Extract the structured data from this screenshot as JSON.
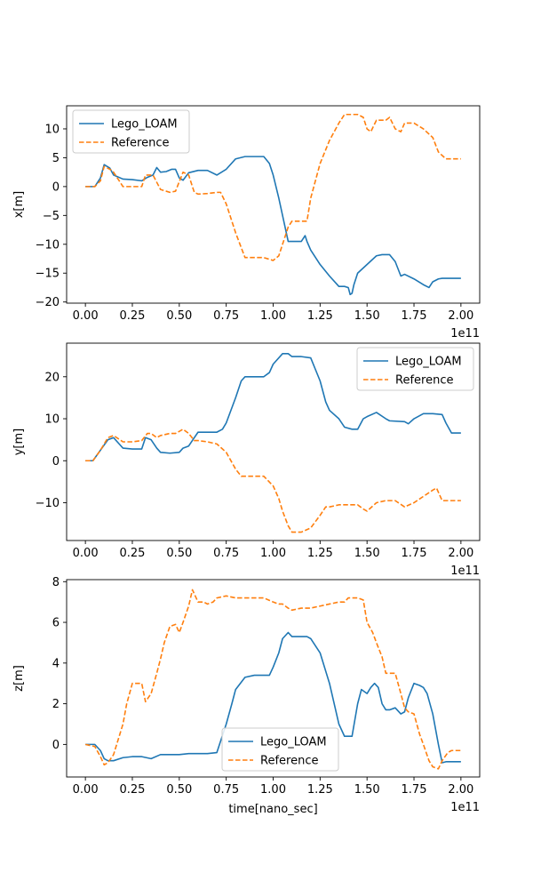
{
  "colors": {
    "lego": "#1f77b4",
    "reference": "#ff7f0e"
  },
  "chart_data": [
    {
      "type": "line",
      "title": "",
      "xlabel": "",
      "ylabel": "x[m]",
      "offset_text": "1e11",
      "xlim": [
        -0.1,
        2.1
      ],
      "ylim": [
        -20.2,
        14.0
      ],
      "xticks": [
        0.0,
        0.25,
        0.5,
        0.75,
        1.0,
        1.25,
        1.5,
        1.75,
        2.0
      ],
      "xtick_labels": [
        "0.00",
        "0.25",
        "0.50",
        "0.75",
        "1.00",
        "1.25",
        "1.50",
        "1.75",
        "2.00"
      ],
      "yticks": [
        -20,
        -15,
        -10,
        -5,
        0,
        5,
        10
      ],
      "ytick_labels": [
        "−20",
        "−15",
        "−10",
        "−5",
        "0",
        "5",
        "10"
      ],
      "legend": "upper-left",
      "grid": false,
      "series": [
        {
          "name": "Lego_LOAM",
          "style": "solid",
          "x": [
            0,
            0.05,
            0.08,
            0.1,
            0.13,
            0.15,
            0.2,
            0.25,
            0.3,
            0.33,
            0.36,
            0.38,
            0.4,
            0.43,
            0.46,
            0.48,
            0.5,
            0.52,
            0.55,
            0.6,
            0.65,
            0.7,
            0.75,
            0.8,
            0.85,
            0.9,
            0.95,
            0.98,
            1.0,
            1.03,
            1.06,
            1.08,
            1.1,
            1.15,
            1.17,
            1.18,
            1.2,
            1.25,
            1.3,
            1.35,
            1.38,
            1.4,
            1.41,
            1.42,
            1.43,
            1.45,
            1.5,
            1.55,
            1.58,
            1.62,
            1.65,
            1.68,
            1.7,
            1.75,
            1.8,
            1.83,
            1.85,
            1.88,
            1.9,
            2.0
          ],
          "y": [
            0,
            0,
            1.5,
            3.8,
            3.2,
            2.0,
            1.3,
            1.2,
            1.0,
            1.6,
            2.0,
            3.3,
            2.5,
            2.6,
            3.0,
            3.0,
            1.5,
            1.1,
            2.4,
            2.8,
            2.8,
            2.0,
            3.0,
            4.8,
            5.2,
            5.2,
            5.2,
            4.0,
            2.0,
            -2.0,
            -6.5,
            -9.5,
            -9.5,
            -9.5,
            -8.5,
            -9.5,
            -11.0,
            -13.5,
            -15.5,
            -17.3,
            -17.3,
            -17.5,
            -18.7,
            -18.5,
            -17.0,
            -15.0,
            -13.5,
            -12.0,
            -11.8,
            -11.8,
            -13.0,
            -15.5,
            -15.2,
            -16.0,
            -17.0,
            -17.5,
            -16.5,
            -16.0,
            -15.9,
            -15.9
          ]
        },
        {
          "name": "Reference",
          "style": "dashed",
          "x": [
            0,
            0.05,
            0.08,
            0.1,
            0.13,
            0.15,
            0.2,
            0.25,
            0.3,
            0.32,
            0.36,
            0.4,
            0.45,
            0.48,
            0.52,
            0.55,
            0.58,
            0.6,
            0.65,
            0.7,
            0.72,
            0.75,
            0.8,
            0.85,
            0.9,
            0.95,
            1.0,
            1.03,
            1.05,
            1.08,
            1.1,
            1.15,
            1.18,
            1.2,
            1.25,
            1.3,
            1.35,
            1.38,
            1.4,
            1.45,
            1.48,
            1.5,
            1.52,
            1.55,
            1.6,
            1.62,
            1.65,
            1.68,
            1.7,
            1.75,
            1.8,
            1.85,
            1.88,
            1.92,
            1.95,
            2.0
          ],
          "y": [
            0,
            0,
            1.0,
            3.5,
            3.0,
            2.5,
            0,
            0,
            0,
            2.0,
            2.0,
            -0.5,
            -1.0,
            -0.8,
            2.5,
            2.0,
            -1.0,
            -1.3,
            -1.2,
            -1.0,
            -1.0,
            -3.0,
            -8.0,
            -12.3,
            -12.3,
            -12.3,
            -12.8,
            -12.0,
            -10.0,
            -7.0,
            -6.0,
            -6.0,
            -6.0,
            -2.0,
            4.0,
            8.0,
            11.0,
            12.5,
            12.5,
            12.5,
            12.0,
            10.0,
            9.5,
            11.5,
            11.5,
            12.0,
            10.0,
            9.5,
            11.0,
            11.0,
            10.0,
            8.5,
            6.0,
            4.8,
            4.8,
            4.8
          ]
        }
      ]
    },
    {
      "type": "line",
      "title": "",
      "xlabel": "",
      "ylabel": "y[m]",
      "offset_text": "1e11",
      "xlim": [
        -0.1,
        2.1
      ],
      "ylim": [
        -19.0,
        28.0
      ],
      "xticks": [
        0.0,
        0.25,
        0.5,
        0.75,
        1.0,
        1.25,
        1.5,
        1.75,
        2.0
      ],
      "xtick_labels": [
        "0.00",
        "0.25",
        "0.50",
        "0.75",
        "1.00",
        "1.25",
        "1.50",
        "1.75",
        "2.00"
      ],
      "yticks": [
        -10,
        0,
        10,
        20
      ],
      "ytick_labels": [
        "−10",
        "0",
        "10",
        "20"
      ],
      "legend": "upper-right",
      "grid": false,
      "series": [
        {
          "name": "Lego_LOAM",
          "style": "solid",
          "x": [
            0,
            0.04,
            0.08,
            0.12,
            0.15,
            0.18,
            0.2,
            0.25,
            0.3,
            0.32,
            0.35,
            0.38,
            0.4,
            0.45,
            0.5,
            0.52,
            0.55,
            0.58,
            0.6,
            0.7,
            0.73,
            0.75,
            0.8,
            0.83,
            0.85,
            0.9,
            0.95,
            0.98,
            1.0,
            1.05,
            1.08,
            1.1,
            1.15,
            1.2,
            1.25,
            1.28,
            1.3,
            1.35,
            1.38,
            1.42,
            1.45,
            1.48,
            1.5,
            1.55,
            1.6,
            1.62,
            1.7,
            1.72,
            1.75,
            1.8,
            1.85,
            1.9,
            1.92,
            1.95,
            2.0
          ],
          "y": [
            0,
            0,
            2.5,
            5.0,
            5.5,
            4.0,
            3.0,
            2.8,
            2.8,
            5.5,
            5.0,
            3.0,
            2.0,
            1.8,
            2.0,
            3.0,
            3.5,
            5.5,
            6.8,
            6.8,
            7.5,
            9.0,
            15.0,
            19.0,
            20.0,
            20.0,
            20.0,
            21.0,
            23.0,
            25.5,
            25.5,
            24.8,
            24.8,
            24.5,
            19.0,
            14.0,
            12.0,
            10.0,
            8.0,
            7.5,
            7.5,
            10.0,
            10.5,
            11.5,
            10.0,
            9.5,
            9.3,
            8.8,
            10.0,
            11.2,
            11.2,
            11.0,
            9.0,
            6.6,
            6.6
          ]
        },
        {
          "name": "Reference",
          "style": "dashed",
          "x": [
            0,
            0.04,
            0.08,
            0.12,
            0.15,
            0.2,
            0.25,
            0.3,
            0.33,
            0.35,
            0.38,
            0.4,
            0.45,
            0.48,
            0.52,
            0.55,
            0.58,
            0.6,
            0.65,
            0.7,
            0.75,
            0.8,
            0.83,
            0.85,
            0.9,
            0.95,
            1.0,
            1.03,
            1.05,
            1.08,
            1.1,
            1.15,
            1.2,
            1.25,
            1.28,
            1.3,
            1.35,
            1.4,
            1.45,
            1.48,
            1.5,
            1.55,
            1.6,
            1.65,
            1.7,
            1.75,
            1.8,
            1.85,
            1.87,
            1.9,
            1.95,
            2.0
          ],
          "y": [
            0,
            0,
            2.5,
            5.5,
            6.0,
            4.5,
            4.5,
            4.8,
            6.5,
            6.5,
            5.5,
            6.0,
            6.5,
            6.5,
            7.5,
            6.5,
            4.8,
            4.8,
            4.5,
            4.0,
            2.0,
            -2.0,
            -3.7,
            -3.7,
            -3.7,
            -3.7,
            -6.0,
            -9.0,
            -12.0,
            -15.5,
            -17.0,
            -17.0,
            -16.0,
            -13.0,
            -11.0,
            -11.0,
            -10.5,
            -10.5,
            -10.5,
            -11.5,
            -12.0,
            -10.0,
            -9.5,
            -9.5,
            -11.0,
            -10.0,
            -8.5,
            -7.0,
            -6.5,
            -9.5,
            -9.5,
            -9.5
          ]
        }
      ]
    },
    {
      "type": "line",
      "title": "",
      "xlabel": "time[nano_sec]",
      "ylabel": "z[m]",
      "offset_text": "1e11",
      "xlim": [
        -0.1,
        2.1
      ],
      "ylim": [
        -1.6,
        8.1
      ],
      "xticks": [
        0.0,
        0.25,
        0.5,
        0.75,
        1.0,
        1.25,
        1.5,
        1.75,
        2.0
      ],
      "xtick_labels": [
        "0.00",
        "0.25",
        "0.50",
        "0.75",
        "1.00",
        "1.25",
        "1.50",
        "1.75",
        "2.00"
      ],
      "yticks": [
        0,
        2,
        4,
        6,
        8
      ],
      "ytick_labels": [
        "0",
        "2",
        "4",
        "6",
        "8"
      ],
      "legend": "lower-center",
      "grid": false,
      "series": [
        {
          "name": "Lego_LOAM",
          "style": "solid",
          "x": [
            0,
            0.05,
            0.08,
            0.1,
            0.12,
            0.15,
            0.2,
            0.25,
            0.3,
            0.35,
            0.4,
            0.45,
            0.5,
            0.55,
            0.6,
            0.65,
            0.7,
            0.75,
            0.78,
            0.8,
            0.85,
            0.9,
            0.95,
            0.98,
            1.0,
            1.03,
            1.05,
            1.08,
            1.1,
            1.15,
            1.18,
            1.2,
            1.25,
            1.3,
            1.35,
            1.38,
            1.4,
            1.42,
            1.45,
            1.47,
            1.5,
            1.52,
            1.54,
            1.56,
            1.58,
            1.6,
            1.62,
            1.65,
            1.68,
            1.7,
            1.72,
            1.75,
            1.78,
            1.8,
            1.82,
            1.85,
            1.88,
            1.9,
            1.92,
            1.95,
            2.0
          ],
          "y": [
            0,
            0,
            -0.3,
            -0.7,
            -0.8,
            -0.8,
            -0.65,
            -0.6,
            -0.6,
            -0.7,
            -0.5,
            -0.5,
            -0.5,
            -0.45,
            -0.45,
            -0.45,
            -0.4,
            1.0,
            2.0,
            2.7,
            3.3,
            3.4,
            3.4,
            3.4,
            3.8,
            4.5,
            5.2,
            5.5,
            5.3,
            5.3,
            5.3,
            5.2,
            4.5,
            3.0,
            1.0,
            0.4,
            0.4,
            0.4,
            2.0,
            2.7,
            2.5,
            2.8,
            3.0,
            2.8,
            2.0,
            1.7,
            1.7,
            1.8,
            1.5,
            1.6,
            2.3,
            3.0,
            2.9,
            2.8,
            2.5,
            1.5,
            0.0,
            -0.9,
            -0.85,
            -0.85,
            -0.85
          ]
        },
        {
          "name": "Reference",
          "style": "dashed",
          "x": [
            0,
            0.05,
            0.08,
            0.1,
            0.12,
            0.15,
            0.2,
            0.22,
            0.25,
            0.28,
            0.3,
            0.32,
            0.35,
            0.38,
            0.4,
            0.42,
            0.45,
            0.48,
            0.5,
            0.52,
            0.55,
            0.57,
            0.6,
            0.63,
            0.65,
            0.68,
            0.7,
            0.75,
            0.8,
            0.85,
            0.9,
            0.95,
            1.0,
            1.03,
            1.05,
            1.08,
            1.1,
            1.15,
            1.2,
            1.25,
            1.3,
            1.35,
            1.38,
            1.4,
            1.45,
            1.48,
            1.5,
            1.53,
            1.55,
            1.58,
            1.6,
            1.62,
            1.65,
            1.68,
            1.7,
            1.72,
            1.75,
            1.78,
            1.8,
            1.83,
            1.85,
            1.88,
            1.9,
            1.93,
            1.95,
            2.0
          ],
          "y": [
            0,
            -0.1,
            -0.6,
            -1.0,
            -0.9,
            -0.5,
            1.0,
            2.0,
            3.0,
            3.0,
            3.0,
            2.1,
            2.5,
            3.5,
            4.2,
            5.0,
            5.8,
            5.9,
            5.5,
            6.0,
            6.8,
            7.6,
            7.0,
            7.0,
            6.9,
            7.0,
            7.2,
            7.3,
            7.2,
            7.2,
            7.2,
            7.2,
            7.0,
            6.9,
            6.9,
            6.7,
            6.6,
            6.7,
            6.7,
            6.8,
            6.9,
            7.0,
            7.0,
            7.2,
            7.2,
            7.1,
            6.0,
            5.5,
            5.0,
            4.3,
            3.5,
            3.5,
            3.5,
            2.5,
            1.8,
            1.6,
            1.5,
            0.5,
            0.0,
            -0.8,
            -1.1,
            -1.2,
            -0.8,
            -0.4,
            -0.3,
            -0.3
          ]
        }
      ]
    }
  ]
}
